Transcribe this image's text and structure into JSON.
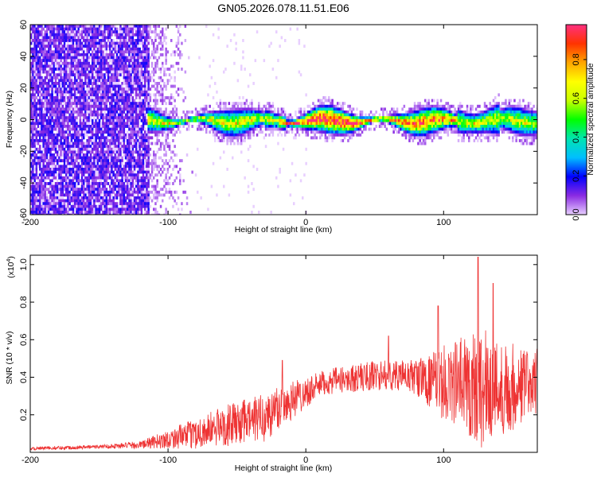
{
  "title": "GN05.2026.078.11.51.E06",
  "chart_data": [
    {
      "type": "heatmap",
      "name": "spectrogram",
      "xlabel": "Height of straight line (km)",
      "ylabel": "Frequency (Hz)",
      "xlim": [
        -200,
        168
      ],
      "ylim": [
        -60,
        60
      ],
      "xticks": [
        -200,
        -100,
        0,
        100
      ],
      "yticks": [
        -60,
        -40,
        -20,
        0,
        20,
        40,
        60
      ],
      "colorbar": {
        "label": "Normalized spectral amplitude",
        "range": [
          0.0,
          0.98
        ],
        "ticks": [
          0.0,
          0.2,
          0.4,
          0.6,
          0.8
        ],
        "colormap": [
          "#e8cfff",
          "#8a2be2",
          "#0000ff",
          "#00bfff",
          "#00e5b0",
          "#00ff00",
          "#c8ff00",
          "#ffff00",
          "#ffa500",
          "#ff3300",
          "#ff3080"
        ]
      },
      "description_regions": {
        "noise_region_x": [
          -200,
          -112
        ],
        "signal_line_freq_hz": 0
      }
    },
    {
      "type": "line",
      "name": "snr",
      "xlabel": "Height of straight line (km)",
      "ylabel": "SNR (10 * v/v)",
      "y_multiplier": "(x10",
      "y_multiplier_exp": "4",
      "y_multiplier_close": ")",
      "xlim": [
        -200,
        168
      ],
      "ylim": [
        0.0,
        1.05
      ],
      "xticks": [
        -200,
        -100,
        0,
        100
      ],
      "yticks": [
        0.2,
        0.4,
        0.6,
        0.8,
        1.0
      ],
      "ytick_labels": [
        "0.2",
        "0.4",
        "0.6",
        "0.8",
        "1.0"
      ],
      "color": "#ee3333",
      "envelope": {
        "x": [
          -200,
          -150,
          -120,
          -100,
          -80,
          -60,
          -40,
          -25,
          -20,
          -10,
          0,
          10,
          20,
          30,
          40,
          50,
          60,
          70,
          80,
          90,
          100,
          110,
          120,
          125,
          130,
          140,
          150,
          160,
          168
        ],
        "base": [
          0.02,
          0.03,
          0.04,
          0.07,
          0.1,
          0.14,
          0.17,
          0.2,
          0.24,
          0.28,
          0.32,
          0.36,
          0.38,
          0.39,
          0.4,
          0.41,
          0.41,
          0.41,
          0.4,
          0.38,
          0.37,
          0.37,
          0.36,
          0.35,
          0.34,
          0.34,
          0.35,
          0.36,
          0.38
        ],
        "amp": [
          0.01,
          0.01,
          0.02,
          0.05,
          0.08,
          0.11,
          0.12,
          0.14,
          0.13,
          0.11,
          0.08,
          0.07,
          0.07,
          0.07,
          0.08,
          0.08,
          0.08,
          0.08,
          0.1,
          0.14,
          0.2,
          0.24,
          0.3,
          0.34,
          0.32,
          0.26,
          0.24,
          0.2,
          0.18
        ]
      },
      "peaks": [
        {
          "x": -17,
          "y": 0.49
        },
        {
          "x": 60,
          "y": 0.62
        },
        {
          "x": 96,
          "y": 0.78
        },
        {
          "x": 125,
          "y": 1.04
        },
        {
          "x": 136,
          "y": 0.9
        }
      ]
    }
  ]
}
